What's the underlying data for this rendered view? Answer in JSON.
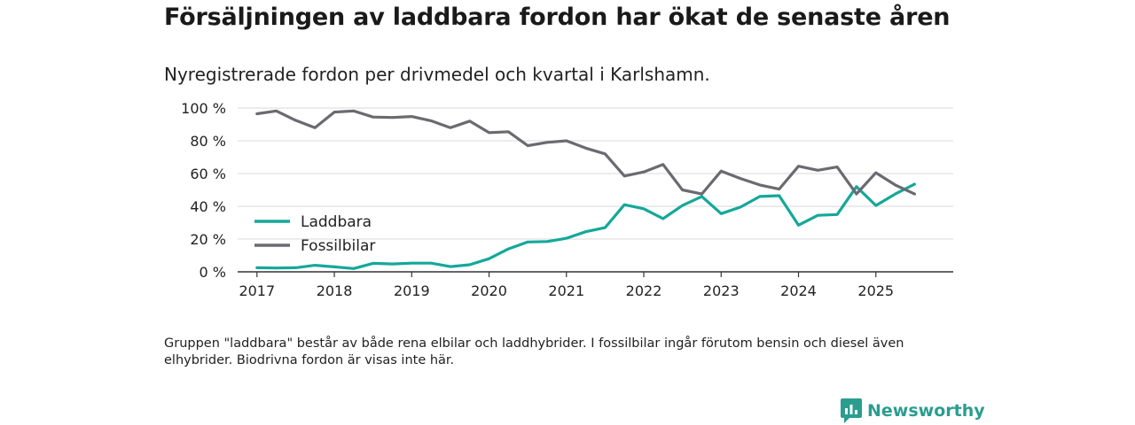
{
  "header": {
    "title": "Försäljningen av laddbara fordon har ökat de senaste åren",
    "subtitle": "Nyregistrerade fordon per drivmedel och kvartal i Karlshamn."
  },
  "footer": {
    "note": "Gruppen \"laddbara\" består av både rena elbilar och laddhybrider. I fossilbilar ingår förutom bensin och diesel även elhybrider. Biodrivna fordon är visas inte här.",
    "brand": "Newsworthy"
  },
  "colors": {
    "laddbara": "#14a89a",
    "fossil": "#6a6a70",
    "grid": "#d9d9d9",
    "axis": "#333333",
    "brand": "#2a9d8f"
  },
  "chart_data": {
    "type": "line",
    "title": "Försäljningen av laddbara fordon har ökat de senaste åren",
    "subtitle": "Nyregistrerade fordon per drivmedel och kvartal i Karlshamn.",
    "xlabel": "",
    "ylabel": "",
    "x_unit": "quarter",
    "x_start": "2017 Q1",
    "xlim": [
      2016.75,
      2026.0
    ],
    "ylim": [
      0,
      100
    ],
    "y_ticks": [
      0,
      20,
      40,
      60,
      80,
      100
    ],
    "y_tick_labels": [
      "0 %",
      "20 %",
      "40 %",
      "60 %",
      "80 %",
      "100 %"
    ],
    "x_ticks": [
      2017,
      2018,
      2019,
      2020,
      2021,
      2022,
      2023,
      2024,
      2025
    ],
    "x_tick_labels": [
      "2017",
      "2018",
      "2019",
      "2020",
      "2021",
      "2022",
      "2023",
      "2024",
      "2025"
    ],
    "legend_position": "left",
    "grid": "horizontal",
    "x": [
      2017.0,
      2017.25,
      2017.5,
      2017.75,
      2018.0,
      2018.25,
      2018.5,
      2018.75,
      2019.0,
      2019.25,
      2019.5,
      2019.75,
      2020.0,
      2020.25,
      2020.5,
      2020.75,
      2021.0,
      2021.25,
      2021.5,
      2021.75,
      2022.0,
      2022.25,
      2022.5,
      2022.75,
      2023.0,
      2023.25,
      2023.5,
      2023.75,
      2024.0,
      2024.25,
      2024.5,
      2024.75,
      2025.0,
      2025.25,
      2025.5
    ],
    "series": [
      {
        "name": "Laddbara",
        "key": "laddbara",
        "values": [
          2.5,
          2.3,
          2.5,
          4.0,
          3.0,
          2.0,
          5.2,
          4.8,
          5.3,
          5.3,
          3.2,
          4.3,
          8.0,
          14.0,
          18.2,
          18.5,
          20.5,
          24.5,
          27.0,
          41.0,
          38.5,
          32.5,
          40.5,
          46.0,
          35.5,
          39.5,
          46.0,
          46.5,
          28.5,
          34.5,
          35.0,
          52.0,
          40.5,
          47.5,
          53.5
        ]
      },
      {
        "name": "Fossilbilar",
        "key": "fossil",
        "values": [
          96.5,
          98.2,
          92.5,
          88.0,
          97.5,
          98.2,
          94.5,
          94.2,
          94.8,
          92.2,
          88.0,
          92.0,
          85.0,
          85.5,
          77.0,
          79.0,
          80.0,
          75.5,
          72.0,
          58.5,
          61.0,
          65.5,
          50.0,
          47.5,
          61.5,
          57.0,
          53.0,
          50.5,
          64.5,
          62.0,
          64.0,
          47.5,
          60.5,
          53.0,
          47.5
        ]
      }
    ]
  }
}
